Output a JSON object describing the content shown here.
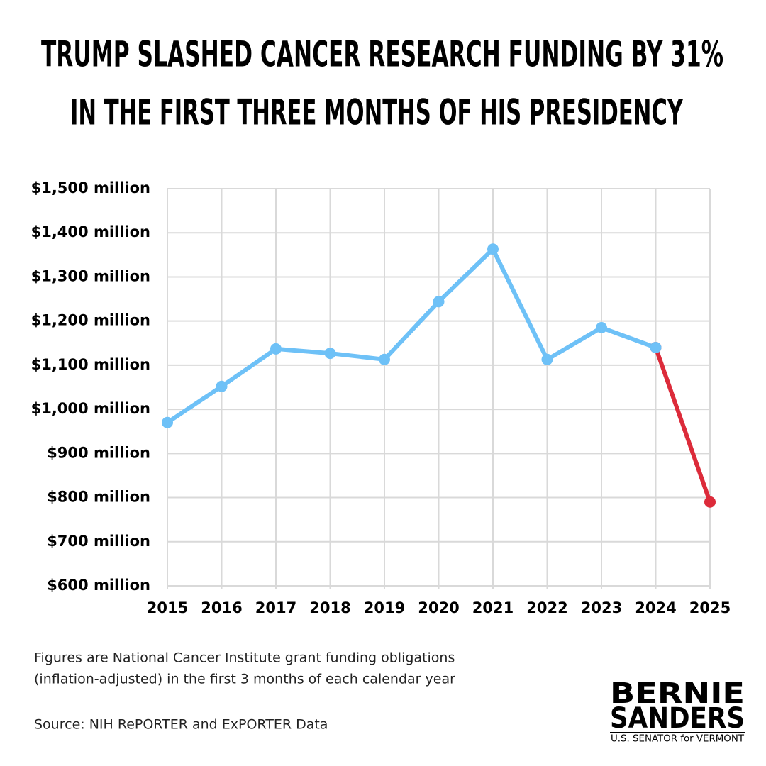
{
  "chart_data": {
    "type": "line",
    "title": [
      "TRUMP SLASHED CANCER RESEARCH FUNDING BY 31%",
      "IN THE FIRST THREE MONTHS OF HIS PRESIDENCY"
    ],
    "x": [
      2015,
      2016,
      2017,
      2018,
      2019,
      2020,
      2021,
      2022,
      2023,
      2024,
      2025
    ],
    "xlim": [
      2015,
      2025
    ],
    "xticks": [
      2015,
      2016,
      2017,
      2018,
      2019,
      2020,
      2021,
      2022,
      2023,
      2024,
      2025
    ],
    "series": [
      {
        "color": "#dc2b3a",
        "values": [
          null,
          null,
          null,
          null,
          null,
          null,
          null,
          null,
          null,
          1140,
          790
        ]
      },
      {
        "color": "#6ec1f7",
        "values": [
          970,
          1052,
          1137,
          1127,
          1113,
          1244,
          1363,
          1113,
          1185,
          1140,
          null
        ]
      }
    ],
    "ylim": [
      600,
      1500
    ],
    "yticks": [
      {
        "value": 600,
        "label": "$600 million"
      },
      {
        "value": 700,
        "label": "$700 million"
      },
      {
        "value": 800,
        "label": "$800 million"
      },
      {
        "value": 900,
        "label": "$900 million"
      },
      {
        "value": 1000,
        "label": "$1,000 million"
      },
      {
        "value": 1100,
        "label": "$1,100 million"
      },
      {
        "value": 1200,
        "label": "$1,200 million"
      },
      {
        "value": 1300,
        "label": "$1,300 million"
      },
      {
        "value": 1400,
        "label": "$1,400 million"
      },
      {
        "value": 1500,
        "label": "$1,500 million"
      }
    ],
    "grid": true,
    "notes": [
      "Figures are National Cancer Institute grant funding obligations",
      "(inflation-adjusted) in the first 3 months of each calendar year"
    ],
    "source": "Source: NIH RePORTER and ExPORTER Data"
  },
  "branding": {
    "name": [
      "BERNIE",
      "SANDERS"
    ],
    "tagline": "U.S. SENATOR for VERMONT"
  }
}
